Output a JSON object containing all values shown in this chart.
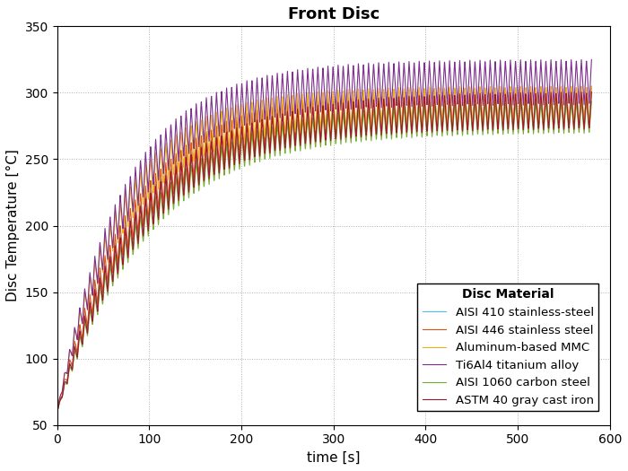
{
  "title": "Front Disc",
  "xlabel": "time [s]",
  "ylabel": "Disc Temperature [°C]",
  "xlim": [
    0,
    600
  ],
  "ylim": [
    50,
    350
  ],
  "xticks": [
    0,
    100,
    200,
    300,
    400,
    500,
    600
  ],
  "yticks": [
    50,
    100,
    150,
    200,
    250,
    300,
    350
  ],
  "legend_title": "Disc Material",
  "materials": [
    "AISI 410 stainless-steel",
    "AISI 446 stainless steel",
    "Aluminum-based MMC",
    "Ti6Al4 titanium alloy",
    "AISI 1060 carbon steel",
    "ASTM 40 gray cast iron"
  ],
  "colors": [
    "#4DBEEE",
    "#D95319",
    "#EDB120",
    "#7E2F8E",
    "#77AC30",
    "#A2142F"
  ],
  "line_widths": [
    0.8,
    0.8,
    0.8,
    0.8,
    0.8,
    0.8
  ],
  "t_max": 580,
  "dt": 0.2,
  "T_init": 60,
  "T_ss": [
    287,
    290,
    290,
    308,
    282,
    287
  ],
  "tau": [
    90,
    85,
    70,
    75,
    95,
    92
  ],
  "osc_amp_steady": [
    14,
    15,
    15,
    17,
    12,
    14
  ],
  "osc_period": 5.5,
  "brake_duration": 2.5,
  "background_color": "#ffffff",
  "grid_color": "#b0b0b0",
  "title_fontsize": 13,
  "label_fontsize": 11,
  "tick_fontsize": 10,
  "legend_fontsize": 9.5,
  "legend_title_fontsize": 10
}
